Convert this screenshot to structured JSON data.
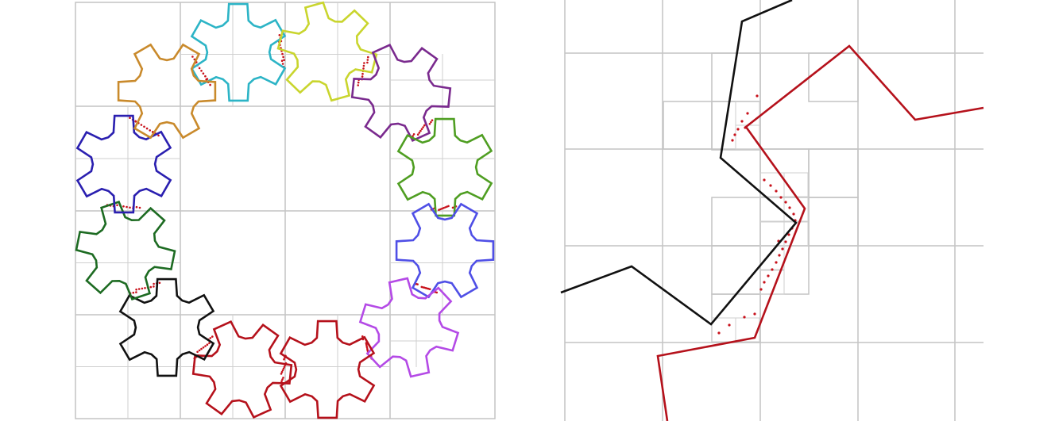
{
  "figure": {
    "panels": [
      {
        "name": "gear-ring-overview",
        "description_shown": ""
      },
      {
        "name": "contact-zoom-detail",
        "description_shown": ""
      }
    ]
  },
  "gears": [
    {
      "name": "gear-cyan",
      "color": "#2cb4c6"
    },
    {
      "name": "gear-yellow-green",
      "color": "#c9d52e"
    },
    {
      "name": "gear-purple",
      "color": "#7a2a8e"
    },
    {
      "name": "gear-green",
      "color": "#4f9e22"
    },
    {
      "name": "gear-blue-violet",
      "color": "#4f4fe6"
    },
    {
      "name": "gear-lilac",
      "color": "#b44ae6"
    },
    {
      "name": "gear-red-right",
      "color": "#b5111b"
    },
    {
      "name": "gear-red-left",
      "color": "#b5111b"
    },
    {
      "name": "gear-black",
      "color": "#111111"
    },
    {
      "name": "gear-dark-green",
      "color": "#1d6b22"
    },
    {
      "name": "gear-navy",
      "color": "#2a1fb0"
    },
    {
      "name": "gear-orange",
      "color": "#c98a2c"
    }
  ],
  "zoom_curves": [
    {
      "name": "zoom-black-curve",
      "color": "#111111"
    },
    {
      "name": "zoom-red-curve",
      "color": "#b5111b"
    }
  ],
  "colors": {
    "grid": "#c4c4c4",
    "contact_points": "#c8101a",
    "background": "#ffffff"
  }
}
